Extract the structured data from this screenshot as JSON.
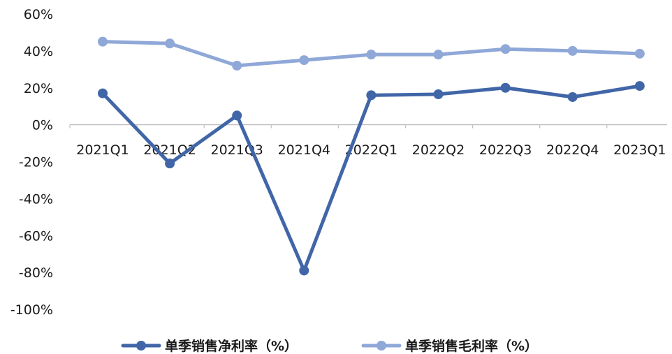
{
  "chart_data": {
    "type": "line",
    "categories": [
      "2021Q1",
      "2021Q2",
      "2021Q3",
      "2021Q4",
      "2022Q1",
      "2022Q2",
      "2022Q3",
      "2022Q4",
      "2023Q1"
    ],
    "series": [
      {
        "name": "单季销售净利率（%）",
        "color": "#4166a8",
        "values": [
          17,
          -21,
          5,
          -79,
          16,
          16.5,
          20,
          15,
          21
        ]
      },
      {
        "name": "单季销售毛利率（%）",
        "color": "#8fa8d8",
        "values": [
          45,
          44,
          32,
          35,
          38,
          38,
          41,
          40,
          38.5
        ]
      }
    ],
    "ylim": [
      -100,
      60
    ],
    "yticks": [
      60,
      40,
      20,
      0,
      -20,
      -40,
      -60,
      -80,
      -100
    ],
    "ytick_labels": [
      "60%",
      "40%",
      "20%",
      "0%",
      "-20%",
      "-40%",
      "-60%",
      "-80%",
      "-100%"
    ],
    "grid": false,
    "legend_position": "bottom",
    "title": "",
    "xlabel": "",
    "ylabel": ""
  }
}
